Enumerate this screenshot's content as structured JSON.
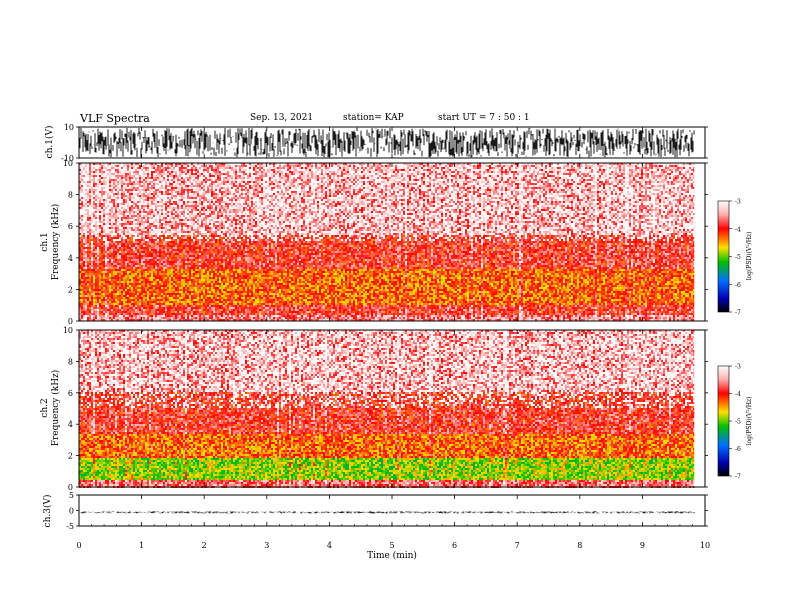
{
  "header": {
    "title": "VLF Spectra",
    "date": "Sep. 13, 2021",
    "station": "station= KAP",
    "start": "start  UT =   7 : 50 : 1"
  },
  "chart_data": [
    {
      "type": "line",
      "panel": "ch1-waveform",
      "ylabel": "ch.1(V)",
      "ylim": [
        -10,
        10
      ],
      "yticks": [
        "10",
        "-10"
      ],
      "x_range_min": [
        0,
        9.83
      ],
      "description_level": "dense oscillation spanning full +-10 V range"
    },
    {
      "type": "heatmap",
      "panel": "ch1-spectrogram",
      "ylabel_top": "ch.1",
      "ylabel": "Frequency (kHz)",
      "ylim": [
        0,
        10
      ],
      "yticks": [
        "0",
        "2",
        "4",
        "6",
        "8",
        "10"
      ],
      "x_range_min": [
        0,
        9.83
      ],
      "bands": [
        {
          "from_khz": 0.0,
          "to_khz": 0.4,
          "level": -3.6
        },
        {
          "from_khz": 0.4,
          "to_khz": 1.0,
          "level": -3.9
        },
        {
          "from_khz": 1.0,
          "to_khz": 3.3,
          "level": -4.3
        },
        {
          "from_khz": 3.3,
          "to_khz": 5.5,
          "level": -3.9
        },
        {
          "from_khz": 5.5,
          "to_khz": 10.0,
          "level": -3.5
        }
      ],
      "colorbar": {
        "label": "log(PSD)(V²/Hz)",
        "min": -7,
        "max": -3,
        "ticks": [
          "-3",
          "-4",
          "-5",
          "-6",
          "-7"
        ]
      }
    },
    {
      "type": "heatmap",
      "panel": "ch2-spectrogram",
      "ylabel_top": "ch.2",
      "ylabel": "Frequency (kHz)",
      "ylim": [
        0,
        10
      ],
      "yticks": [
        "0",
        "2",
        "4",
        "6",
        "8",
        "10"
      ],
      "x_range_min": [
        0,
        9.83
      ],
      "bands": [
        {
          "from_khz": 0.0,
          "to_khz": 0.4,
          "level": -3.7
        },
        {
          "from_khz": 0.4,
          "to_khz": 1.8,
          "level": -4.9
        },
        {
          "from_khz": 1.8,
          "to_khz": 3.4,
          "level": -4.3
        },
        {
          "from_khz": 3.4,
          "to_khz": 6.0,
          "level": -3.9
        },
        {
          "from_khz": 6.0,
          "to_khz": 10.0,
          "level": -3.5
        }
      ],
      "colorbar": {
        "label": "log(PSD)(V²/Hz)",
        "min": -7,
        "max": -3,
        "ticks": [
          "-3",
          "-4",
          "-5",
          "-6",
          "-7"
        ]
      }
    },
    {
      "type": "line",
      "panel": "ch3-waveform",
      "ylabel": "ch.3(V)",
      "ylim": [
        -5,
        5
      ],
      "yticks": [
        "5",
        "0",
        "-5"
      ],
      "x_range_min": [
        0,
        9.83
      ],
      "description_level": "narrow band around -0.6 V"
    }
  ],
  "xaxis": {
    "label": "Time (min)",
    "ticks": [
      "0",
      "1",
      "2",
      "3",
      "4",
      "5",
      "6",
      "7",
      "8",
      "9",
      "10"
    ],
    "xlim": [
      0,
      10
    ]
  }
}
